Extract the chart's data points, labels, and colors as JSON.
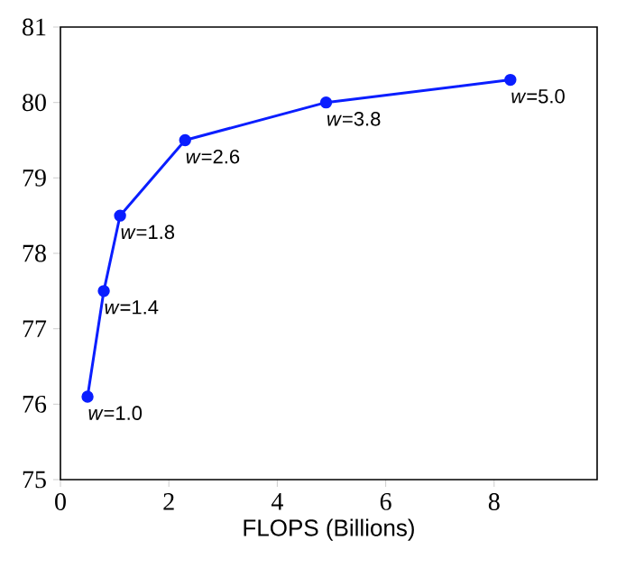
{
  "chart_data": {
    "type": "line",
    "xlabel": "FLOPS (Billions)",
    "x": [
      0.5,
      0.8,
      1.1,
      2.3,
      4.9,
      8.3
    ],
    "values": [
      76.1,
      77.5,
      78.5,
      79.5,
      80.0,
      80.3
    ],
    "color": "#0a1eff",
    "marker": "circle",
    "line_style": "solid",
    "xlim": [
      0,
      9.9
    ],
    "ylim": [
      75,
      81
    ],
    "xticks": [
      0,
      2,
      4,
      6,
      8
    ],
    "yticks": [
      75,
      76,
      77,
      78,
      79,
      80,
      81
    ],
    "annotations": [
      {
        "text": "*w*=1.0",
        "x": 0.5,
        "y": 76.1
      },
      {
        "text": "*w*=1.4",
        "x": 0.8,
        "y": 77.5
      },
      {
        "text": "*w*=1.8",
        "x": 1.1,
        "y": 78.5
      },
      {
        "text": "*w*=2.6",
        "x": 2.3,
        "y": 79.5
      },
      {
        "text": "*w*=3.8",
        "x": 4.9,
        "y": 80.0
      },
      {
        "text": "*w*=5.0",
        "x": 8.3,
        "y": 80.3
      }
    ]
  }
}
